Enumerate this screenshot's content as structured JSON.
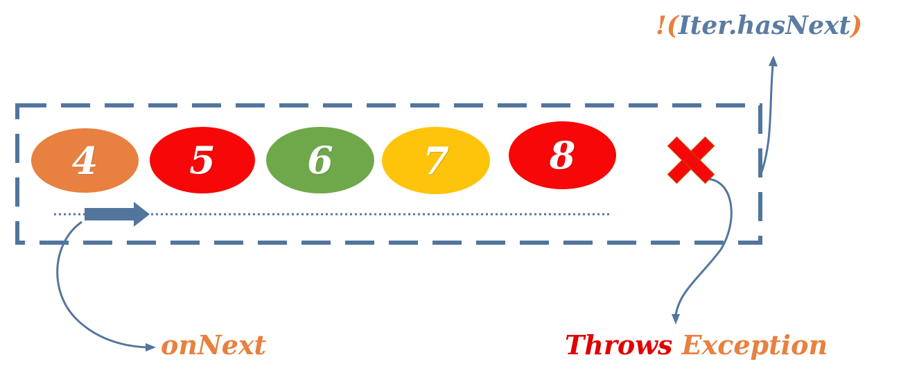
{
  "elements": [
    {
      "value": "4",
      "color": "#e8803f"
    },
    {
      "value": "5",
      "color": "#f70707"
    },
    {
      "value": "6",
      "color": "#6fa84b"
    },
    {
      "value": "7",
      "color": "#fdc40b"
    },
    {
      "value": "8",
      "color": "#f70707"
    }
  ],
  "labels": {
    "on_next": "onNext",
    "throws_word": "Throws",
    "exception_word": "Exception",
    "not_open": "!(",
    "iter_has_next": "Iter.hasNext",
    "close_paren": ")"
  },
  "colors": {
    "border": "#52759e",
    "arrow": "#52759e",
    "orange_text": "#e8803f",
    "red_text": "#e00000",
    "blue_text": "#5a7ca2",
    "cross": "#f70707"
  }
}
